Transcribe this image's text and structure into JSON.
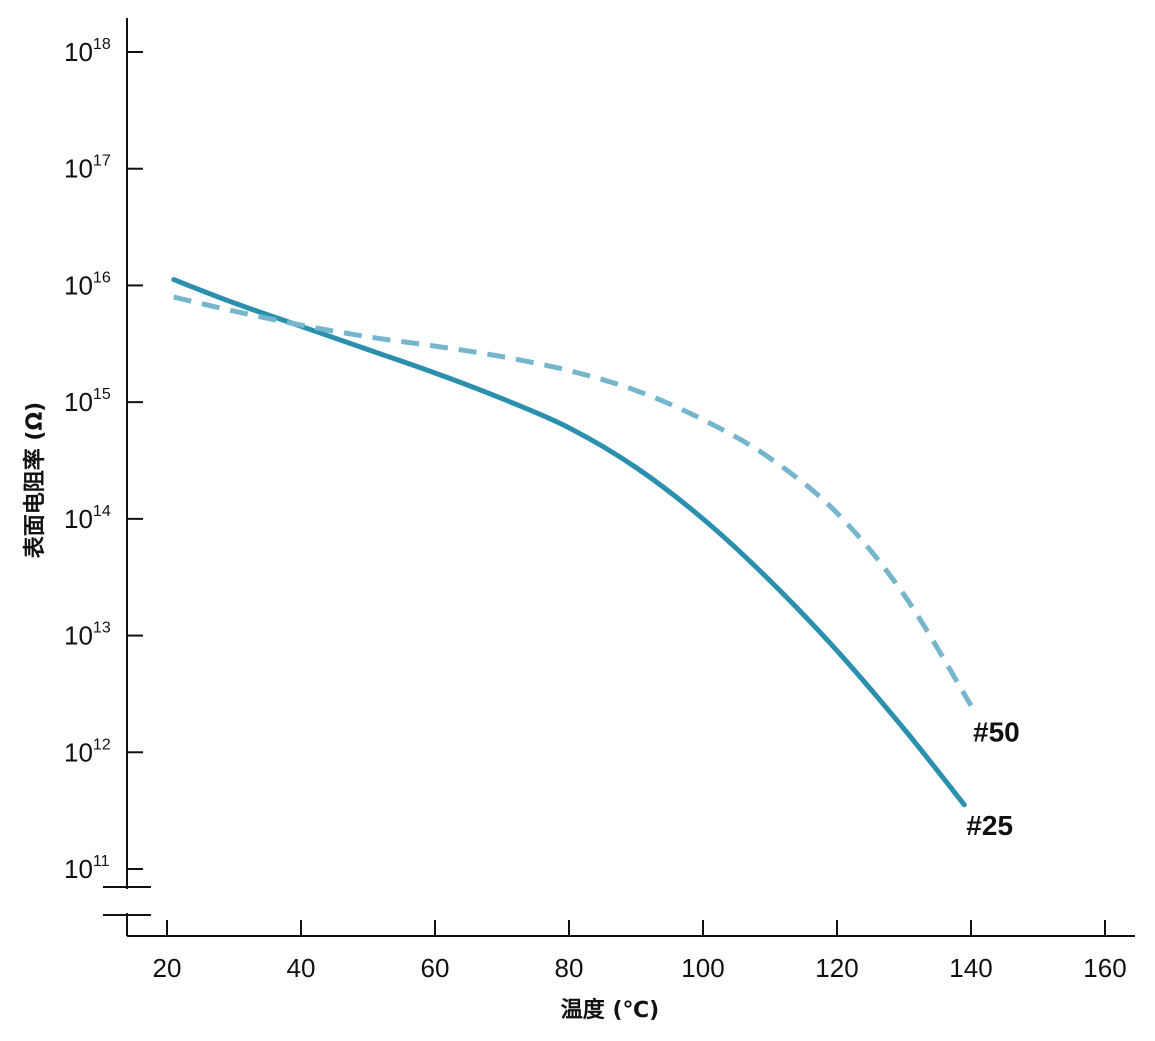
{
  "chart_data": {
    "type": "line",
    "xlabel": "温度 (℃)",
    "ylabel": "表面电阻率 (Ω)",
    "xlim": [
      20,
      160
    ],
    "x_ticks": [
      "20",
      "40",
      "60",
      "80",
      "100",
      "120",
      "140",
      "160"
    ],
    "y_scale": "log",
    "ylim_exponent": [
      11,
      18
    ],
    "y_ticks": [
      {
        "base": "10",
        "exp": "18"
      },
      {
        "base": "10",
        "exp": "17"
      },
      {
        "base": "10",
        "exp": "16"
      },
      {
        "base": "10",
        "exp": "15"
      },
      {
        "base": "10",
        "exp": "14"
      },
      {
        "base": "10",
        "exp": "13"
      },
      {
        "base": "10",
        "exp": "12"
      },
      {
        "base": "10",
        "exp": "11"
      }
    ],
    "grid": false,
    "axis_break": true,
    "series": [
      {
        "name": "#25",
        "style": "solid",
        "color": "#2b8fae",
        "x": [
          21,
          30,
          40,
          50,
          60,
          70,
          80,
          90,
          100,
          110,
          120,
          130,
          139
        ],
        "log10_y": [
          16.05,
          15.85,
          15.65,
          15.45,
          15.25,
          15.03,
          14.78,
          14.44,
          14.0,
          13.47,
          12.87,
          12.2,
          11.55
        ]
      },
      {
        "name": "#50",
        "style": "dashed",
        "color": "#76b6cd",
        "x": [
          21,
          30,
          40,
          50,
          60,
          70,
          80,
          90,
          100,
          110,
          120,
          130,
          140
        ],
        "log10_y": [
          15.9,
          15.78,
          15.66,
          15.56,
          15.48,
          15.39,
          15.27,
          15.1,
          14.85,
          14.52,
          14.05,
          13.35,
          12.4
        ]
      }
    ]
  }
}
